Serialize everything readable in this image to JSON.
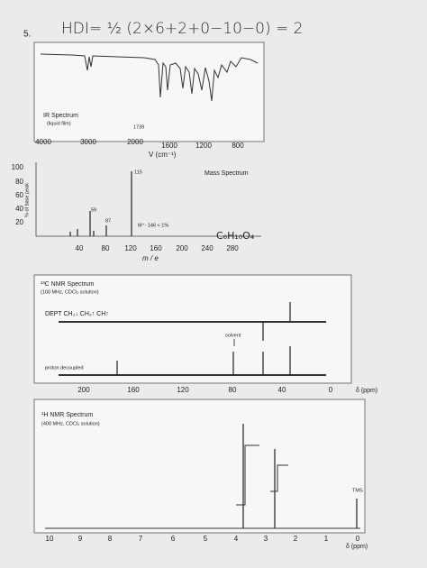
{
  "problem_number": "5.",
  "handwritten_note": "HDI= ½ (2×6+2+0−10−0) = 2",
  "ir_spectrum": {
    "title": "IR Spectrum",
    "subtitle": "(liquid film)",
    "peak_label": "1739",
    "axis_ticks": [
      "4000",
      "3000",
      "2000",
      "1600",
      "1200",
      "800"
    ],
    "axis_label": "V (cm⁻¹)"
  },
  "mass_spectrum": {
    "title": "Mass Spectrum",
    "y_axis_label": "% of base peak",
    "y_ticks": [
      "100",
      "80",
      "60",
      "40",
      "20"
    ],
    "peak_labels": [
      "59",
      "87",
      "115"
    ],
    "molecular_ion": "M⁺· 146 < 1%",
    "formula": "C₆H₁₀O₄",
    "x_ticks": [
      "40",
      "80",
      "120",
      "160",
      "200",
      "240",
      "280"
    ],
    "x_axis_label": "m / e"
  },
  "c13_nmr": {
    "title": "¹³C NMR Spectrum",
    "subtitle": "(100 MHz, CDCl₃ solution)",
    "dept_label": "DEPT  CH₂↓ CH₃↑ CH↑",
    "decoupled_label": "proton decoupled",
    "solvent_label": "solvent",
    "axis_ticks": [
      "200",
      "160",
      "120",
      "80",
      "40",
      "0"
    ],
    "axis_label": "δ (ppm)"
  },
  "h1_nmr": {
    "title": "¹H NMR Spectrum",
    "subtitle": "(400 MHz, CDCl₃ solution)",
    "reference_label": "TMS",
    "axis_ticks": [
      "10",
      "9",
      "8",
      "7",
      "6",
      "5",
      "4",
      "3",
      "2",
      "1",
      "0"
    ],
    "axis_label": "δ (ppm)"
  }
}
